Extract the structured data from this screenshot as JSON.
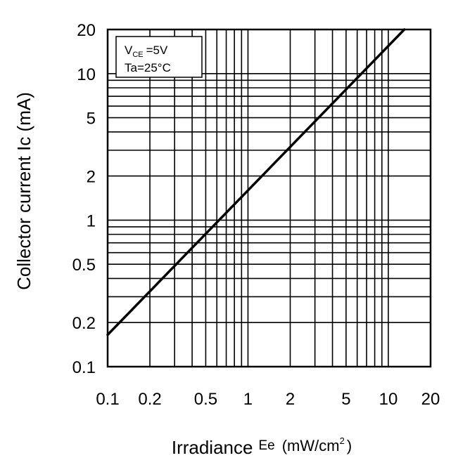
{
  "chart_data": {
    "type": "line",
    "xscale": "log",
    "yscale": "log",
    "xlim": [
      0.1,
      20
    ],
    "ylim": [
      0.1,
      20
    ],
    "xticks": [
      0.1,
      0.2,
      0.5,
      1,
      2,
      5,
      10,
      20
    ],
    "xtick_labels": [
      "0.1",
      "0.2",
      "0.5",
      "1",
      "2",
      "5",
      "10",
      "20"
    ],
    "yticks": [
      0.1,
      0.2,
      0.5,
      1,
      2,
      5,
      10,
      20
    ],
    "ytick_labels": [
      "0.1",
      "0.2",
      "0.5",
      "1",
      "2",
      "5",
      "10",
      "20"
    ],
    "xlabel_main": "Irradiance",
    "xlabel_symbol": "Ee",
    "xlabel_unit": "(mW/cm",
    "xlabel_unit_sup": "2",
    "xlabel_unit_close": ")",
    "ylabel": "Collector current Ic (mA)",
    "conditions": {
      "vce_symbol": "V",
      "vce_sub": "CE",
      "vce_value": "=5V",
      "ta": "Ta=25°C"
    },
    "grid": true,
    "series": [
      {
        "x": [
          0.1,
          13
        ],
        "y": [
          0.165,
          20
        ]
      }
    ]
  }
}
